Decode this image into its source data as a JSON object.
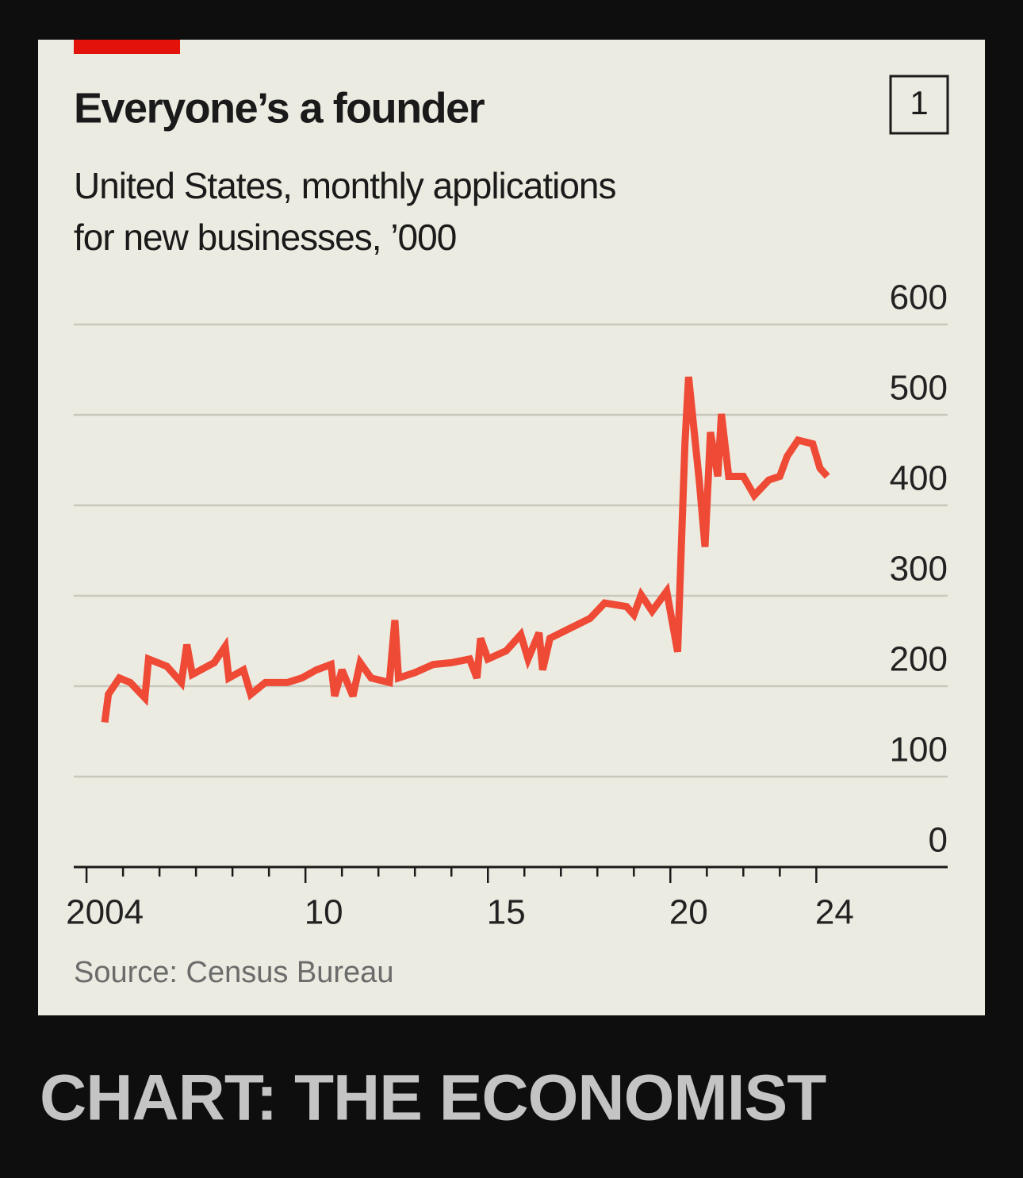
{
  "chart_data": {
    "type": "line",
    "title": "Everyone’s a founder",
    "subtitle": [
      "United States, monthly applications",
      "for new businesses, ’000"
    ],
    "source": "Source: Census Bureau",
    "color": "#ee4a35",
    "x": [
      2004.5,
      2004.6,
      2004.9,
      2005.2,
      2005.6,
      2005.7,
      2006.2,
      2006.6,
      2006.75,
      2006.9,
      2007.5,
      2007.8,
      2007.9,
      2008.3,
      2008.5,
      2008.9,
      2009.5,
      2009.9,
      2010.3,
      2010.7,
      2010.8,
      2011,
      2011.3,
      2011.5,
      2011.8,
      2012.3,
      2012.45,
      2012.55,
      2013,
      2013.5,
      2014,
      2014.5,
      2014.7,
      2014.8,
      2015,
      2015.5,
      2015.9,
      2016.1,
      2016.4,
      2016.5,
      2016.7,
      2017.2,
      2017.8,
      2018.2,
      2018.8,
      2019,
      2019.2,
      2019.5,
      2019.9,
      2020.2,
      2020.4,
      2020.5,
      2020.8,
      2020.95,
      2021.1,
      2021.3,
      2021.4,
      2021.6,
      2022,
      2022.3,
      2022.7,
      2023,
      2023.2,
      2023.5,
      2023.9,
      2024.1,
      2024.3
    ],
    "values": [
      160,
      191,
      209,
      204,
      187,
      230,
      222,
      204,
      246,
      213,
      226,
      244,
      209,
      218,
      191,
      204,
      204,
      209,
      218,
      224,
      189,
      218,
      189,
      226,
      209,
      204,
      273,
      209,
      215,
      224,
      226,
      230,
      209,
      253,
      230,
      239,
      257,
      230,
      259,
      218,
      253,
      263,
      275,
      292,
      288,
      279,
      301,
      283,
      305,
      238,
      468,
      542,
      424,
      354,
      481,
      432,
      501,
      432,
      432,
      411,
      428,
      432,
      454,
      472,
      468,
      441,
      432
    ],
    "xlim": [
      2003.65,
      2027.6
    ],
    "xticks": [
      {
        "value": 2004,
        "label": "2004"
      },
      {
        "value": 2010,
        "label": "10"
      },
      {
        "value": 2015,
        "label": "15"
      },
      {
        "value": 2020,
        "label": "20"
      },
      {
        "value": 2024,
        "label": "24"
      }
    ],
    "xminor_ticks": [
      2005,
      2006,
      2007,
      2008,
      2009,
      2011,
      2012,
      2013,
      2014,
      2016,
      2017,
      2018,
      2019,
      2021,
      2022,
      2023
    ],
    "ylim": [
      0,
      600
    ],
    "yticks": [
      0,
      100,
      200,
      300,
      400,
      500,
      600
    ],
    "grid": true
  },
  "badge": "1",
  "credit": "CHART: THE ECONOMIST"
}
